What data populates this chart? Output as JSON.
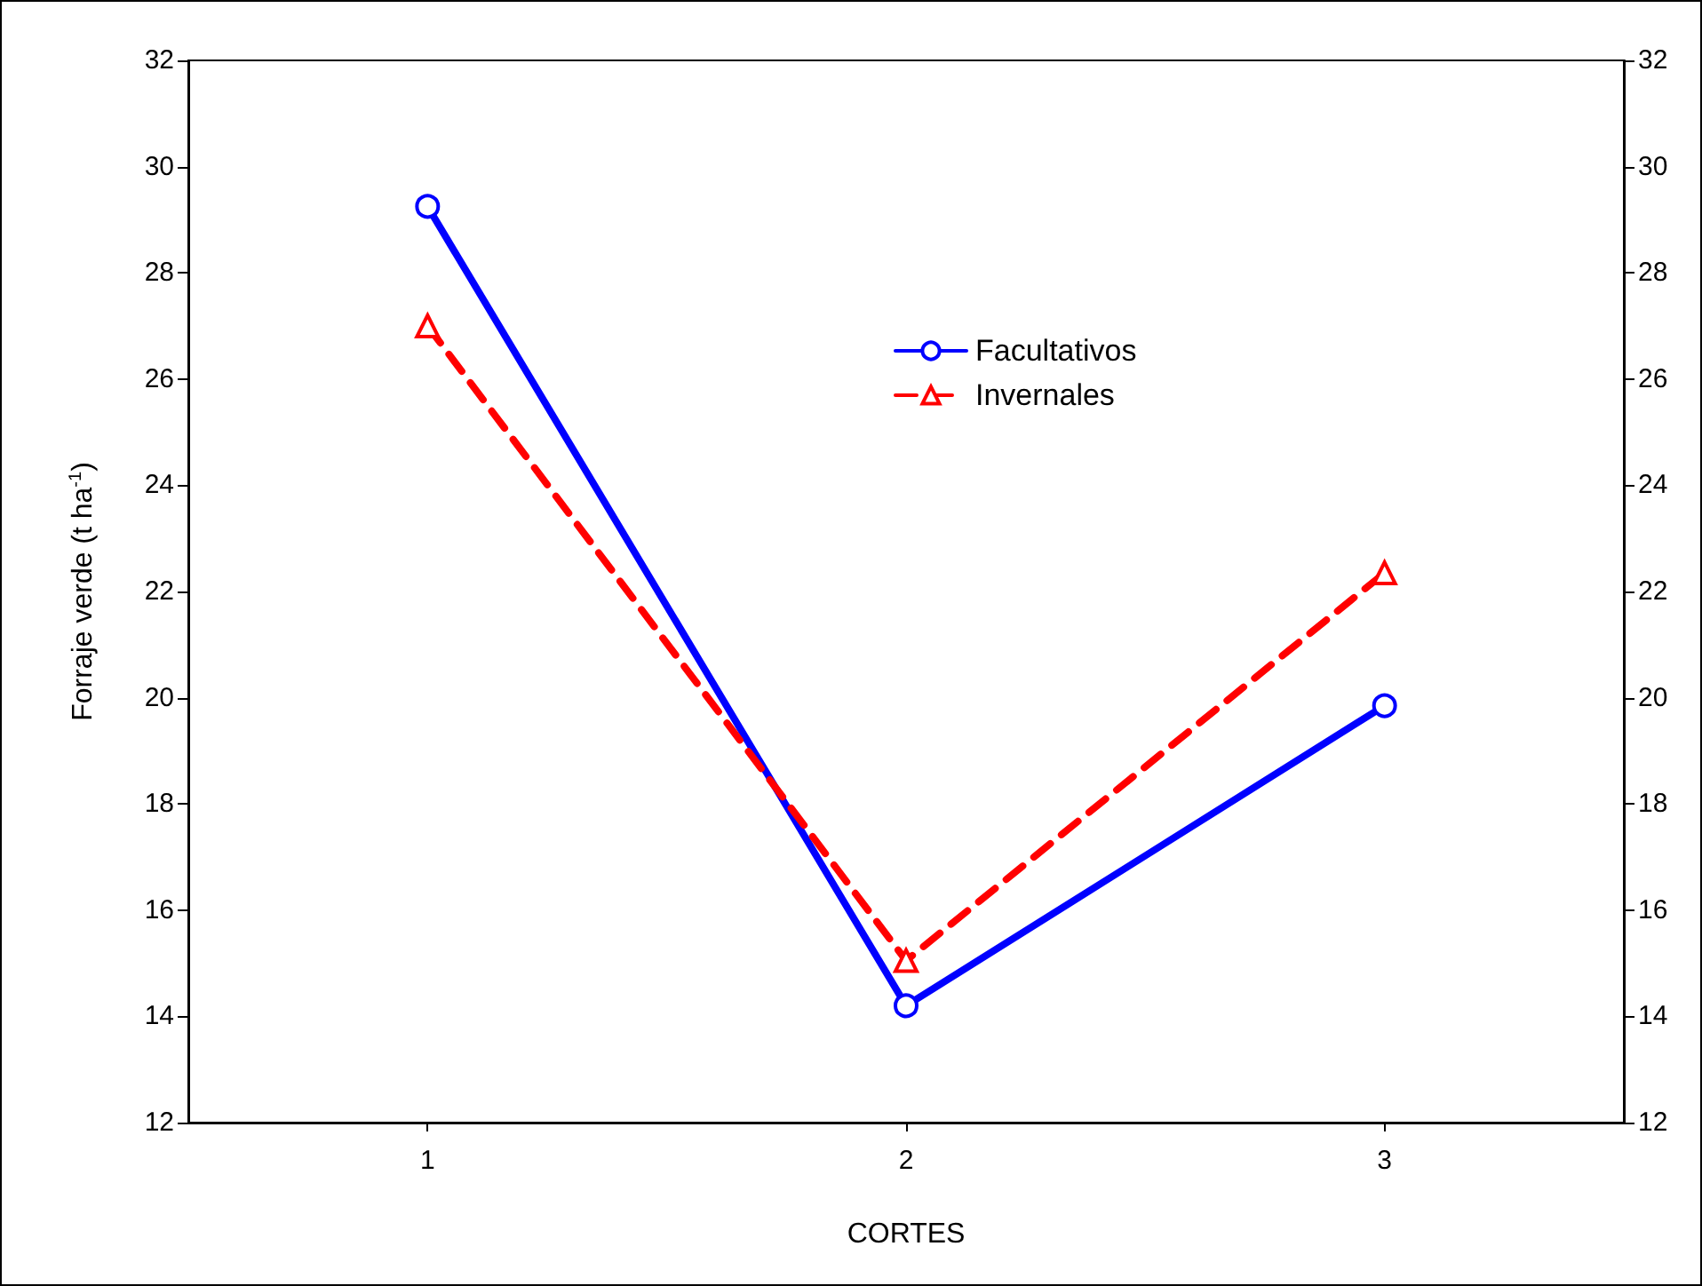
{
  "chart_data": {
    "type": "line",
    "xlabel": "CORTES",
    "ylabel": "Forraje verde (t ha$^{-1}$)",
    "categories": [
      "1",
      "2",
      "3"
    ],
    "series": [
      {
        "name": "Facultativos",
        "color": "#0000ff",
        "values": [
          29.25,
          14.2,
          19.85
        ],
        "marker": "circle",
        "line_style": "solid"
      },
      {
        "name": "Invernales",
        "color": "#ff0000",
        "values": [
          27.0,
          15.05,
          22.35
        ],
        "marker": "triangle",
        "line_style": "dashed"
      }
    ],
    "ylim": [
      12,
      32
    ],
    "yticks": [
      12,
      14,
      16,
      18,
      20,
      22,
      24,
      26,
      28,
      30,
      32
    ],
    "y2lim": [
      12,
      32
    ],
    "y2ticks": [
      12,
      14,
      16,
      18,
      20,
      22,
      24,
      26,
      28,
      30,
      32
    ],
    "grid": false,
    "legend": "top"
  }
}
